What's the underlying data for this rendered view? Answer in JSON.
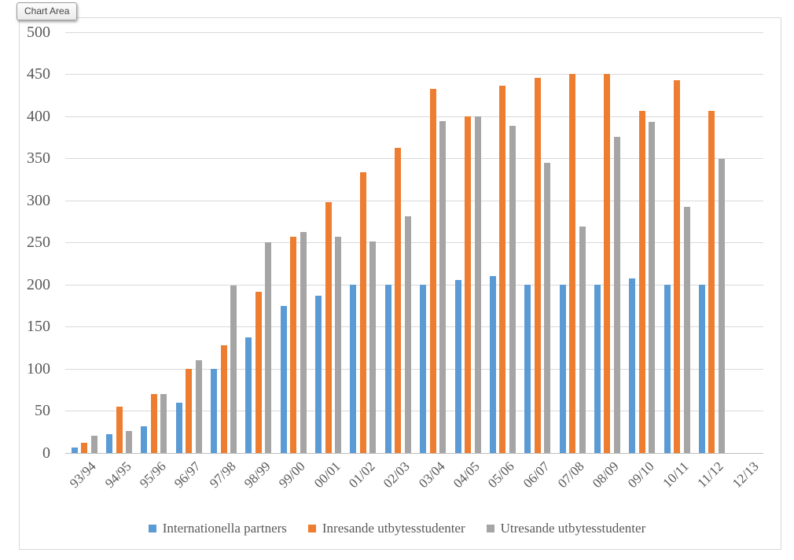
{
  "tooltip": {
    "label": "Chart Area"
  },
  "axis_text_color": "#595959",
  "gridline_color": "#d9d9d9",
  "axis_line_color": "#bfbfbf",
  "chart_data": {
    "type": "bar",
    "title": "",
    "xlabel": "",
    "ylabel": "",
    "ylim": [
      0,
      500
    ],
    "ytick_step": 50,
    "grid": true,
    "legend_position": "bottom",
    "categories": [
      "93/94",
      "94/95",
      "95/96",
      "96/97",
      "97/98",
      "98/99",
      "99/00",
      "00/01",
      "01/02",
      "02/03",
      "03/04",
      "04/05",
      "05/06",
      "06/07",
      "07/08",
      "08/09",
      "09/10",
      "10/11",
      "11/12",
      "12/13"
    ],
    "yticks": [
      0,
      50,
      100,
      150,
      200,
      250,
      300,
      350,
      400,
      450,
      500
    ],
    "series": [
      {
        "name": "Internationella partners",
        "color": "#5B9BD5",
        "values": [
          7,
          22,
          32,
          60,
          100,
          137,
          175,
          187,
          200,
          200,
          200,
          205,
          210,
          200,
          200,
          200,
          207,
          200,
          200,
          null
        ]
      },
      {
        "name": "Inresande utbytesstudenter",
        "color": "#ED7D31",
        "values": [
          12,
          55,
          70,
          100,
          128,
          191,
          257,
          298,
          333,
          362,
          432,
          400,
          436,
          445,
          450,
          450,
          406,
          443,
          406,
          null
        ]
      },
      {
        "name": "Utresande utbytesstudenter",
        "color": "#A5A5A5",
        "values": [
          21,
          26,
          70,
          110,
          199,
          250,
          262,
          257,
          251,
          281,
          394,
          400,
          388,
          345,
          269,
          375,
          393,
          292,
          349,
          null
        ]
      }
    ]
  }
}
